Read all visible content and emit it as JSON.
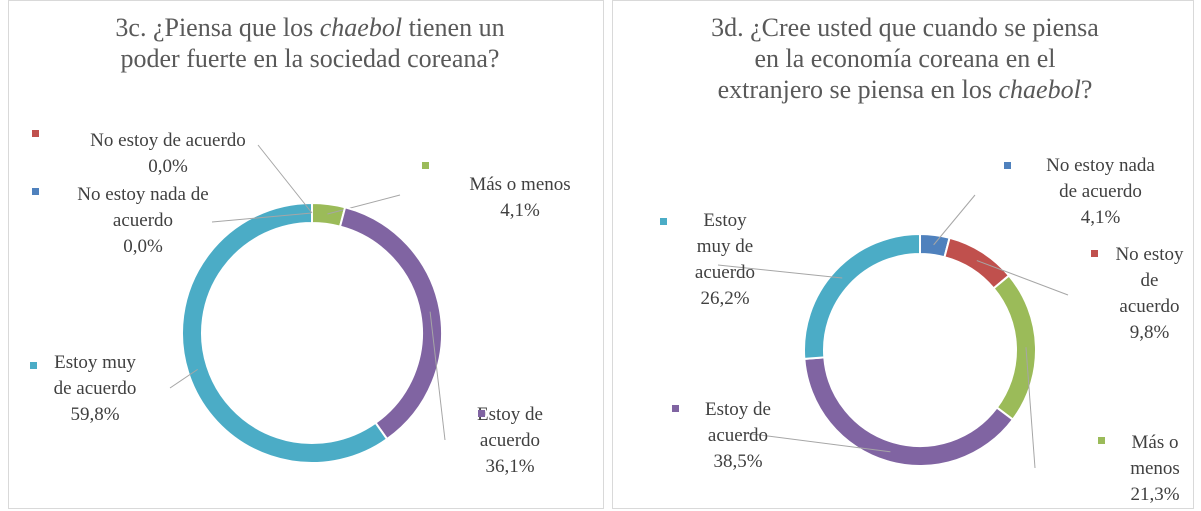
{
  "chart_data": [
    {
      "type": "donut",
      "title": [
        "3c. ¿Piensa que los ",
        "chaebol",
        " tienen un poder fuerte en la sociedad coreana?"
      ],
      "categories": [
        "Más o menos",
        "Estoy de acuerdo",
        "Estoy muy de acuerdo",
        "No estoy nada de acuerdo",
        "No estoy de acuerdo"
      ],
      "values": [
        4.1,
        36.1,
        59.8,
        0.0,
        0.0
      ],
      "value_labels": [
        "4,1%",
        "36,1%",
        "59,8%",
        "0,0%",
        "0,0%"
      ],
      "colors": [
        "#9bbb59",
        "#8064a2",
        "#4bacc6",
        "#4f81bd",
        "#c0504d"
      ]
    },
    {
      "type": "donut",
      "title": [
        "3d. ¿Cree usted que cuando se piensa en la economía coreana en el extranjero se piensa en los ",
        "chaebol",
        "?"
      ],
      "categories": [
        "No estoy nada de acuerdo",
        "No estoy de acuerdo",
        "Más o menos",
        "Estoy de acuerdo",
        "Estoy muy de acuerdo"
      ],
      "values": [
        4.1,
        9.8,
        21.3,
        38.5,
        26.2
      ],
      "value_labels": [
        "4,1%",
        "9,8%",
        "21,3%",
        "38,5%",
        "26,2%"
      ],
      "colors": [
        "#4f81bd",
        "#c0504d",
        "#9bbb59",
        "#8064a2",
        "#4bacc6"
      ]
    }
  ]
}
